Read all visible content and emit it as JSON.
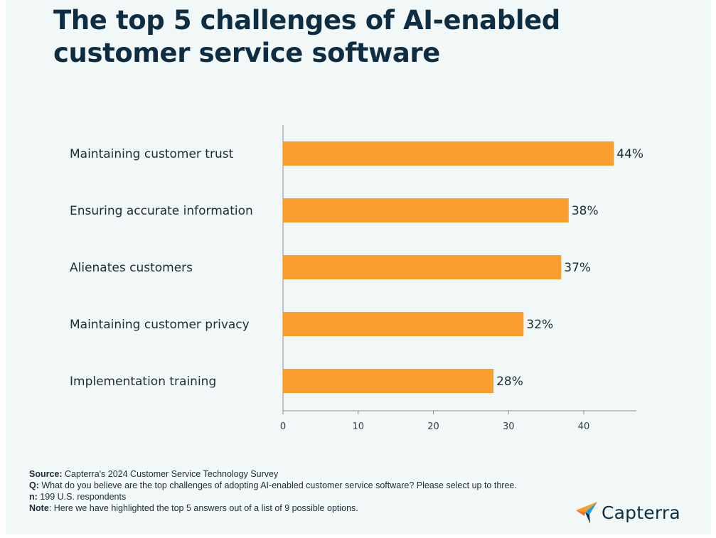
{
  "title_lines": [
    "The top 5 challenges of AI-enabled",
    "customer service software"
  ],
  "chart_data": {
    "type": "bar",
    "orientation": "horizontal",
    "categories": [
      "Maintaining customer trust",
      "Ensuring accurate information",
      "Alienates customers",
      "Maintaining customer privacy",
      "Implementation training"
    ],
    "values": [
      44,
      38,
      37,
      32,
      28
    ],
    "value_labels": [
      "44%",
      "38%",
      "37%",
      "32%",
      "28%"
    ],
    "xlim": [
      0,
      47
    ],
    "xticks": [
      0,
      10,
      20,
      30,
      40
    ],
    "xlabel": "",
    "ylabel": "",
    "grid": false,
    "bar_color": "#fa9f2e"
  },
  "footer": {
    "source_label": "Source:",
    "source_text": " Capterra's 2024 Customer Service Technology Survey",
    "q_label": "Q:",
    "q_text": " What do you believe are the top challenges of adopting AI-enabled customer service software? Please select up to three.",
    "n_label": "n:",
    "n_text": " 199 U.S. respondents",
    "note_label": "Note",
    "note_text": ": Here we have highlighted the top 5 answers out of a list of 9 possible options."
  },
  "logo": {
    "text": "Capterra",
    "icon": "capterra-arrow-icon"
  },
  "colors": {
    "background": "#f2f8f8",
    "title": "#0e2d43",
    "bar": "#fa9f2e",
    "logo_orange": "#ff9d28",
    "logo_blue": "#1aa0dc",
    "logo_dark": "#0e2d43"
  }
}
